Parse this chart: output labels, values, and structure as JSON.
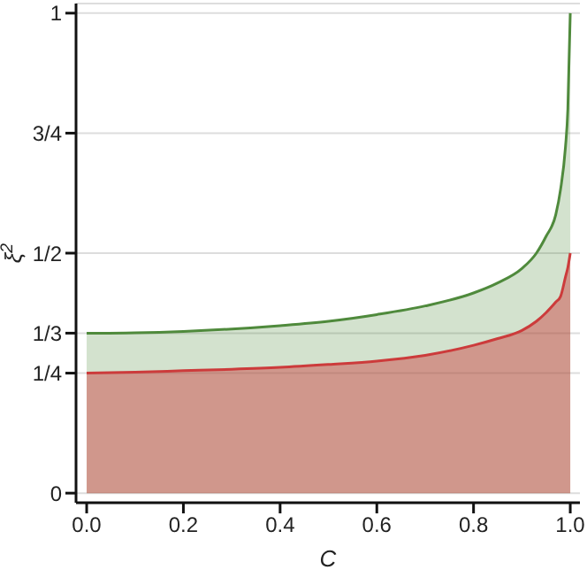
{
  "chart_data": {
    "type": "area",
    "xlabel": "C",
    "ylabel": "ξ$^{2}$",
    "x": [
      0,
      0.1,
      0.2,
      0.3,
      0.4,
      0.5,
      0.6,
      0.7,
      0.8,
      0.85,
      0.9,
      0.93,
      0.95,
      0.97,
      0.98,
      0.99,
      0.995,
      1
    ],
    "series": [
      {
        "color": "#cc3b3b",
        "values": [
          0.25,
          0.252,
          0.255,
          0.258,
          0.262,
          0.268,
          0.275,
          0.287,
          0.308,
          0.322,
          0.339,
          0.358,
          0.376,
          0.398,
          0.41,
          0.45,
          0.47,
          0.5
        ]
      },
      {
        "color": "#4f8a3c",
        "values": [
          0.333,
          0.334,
          0.337,
          0.342,
          0.349,
          0.358,
          0.372,
          0.39,
          0.417,
          0.438,
          0.468,
          0.5,
          0.535,
          0.58,
          0.633,
          0.72,
          0.8,
          1
        ]
      }
    ],
    "xlim": [
      -0.022,
      1.02
    ],
    "xticks": [
      {
        "value": 0,
        "label": "0.0"
      },
      0.2,
      0.4,
      0.6,
      0.8,
      {
        "value": 1,
        "label": "1.0"
      }
    ],
    "ylim": [
      -0.02,
      1.02
    ],
    "yticks": [
      0,
      {
        "value": 0.25,
        "label": "1/4"
      },
      {
        "value": 0.3333,
        "label": "1/3"
      },
      {
        "value": 0.5,
        "label": "1/2"
      },
      {
        "value": 0.75,
        "label": "3/4"
      },
      1
    ],
    "grid": "y"
  }
}
